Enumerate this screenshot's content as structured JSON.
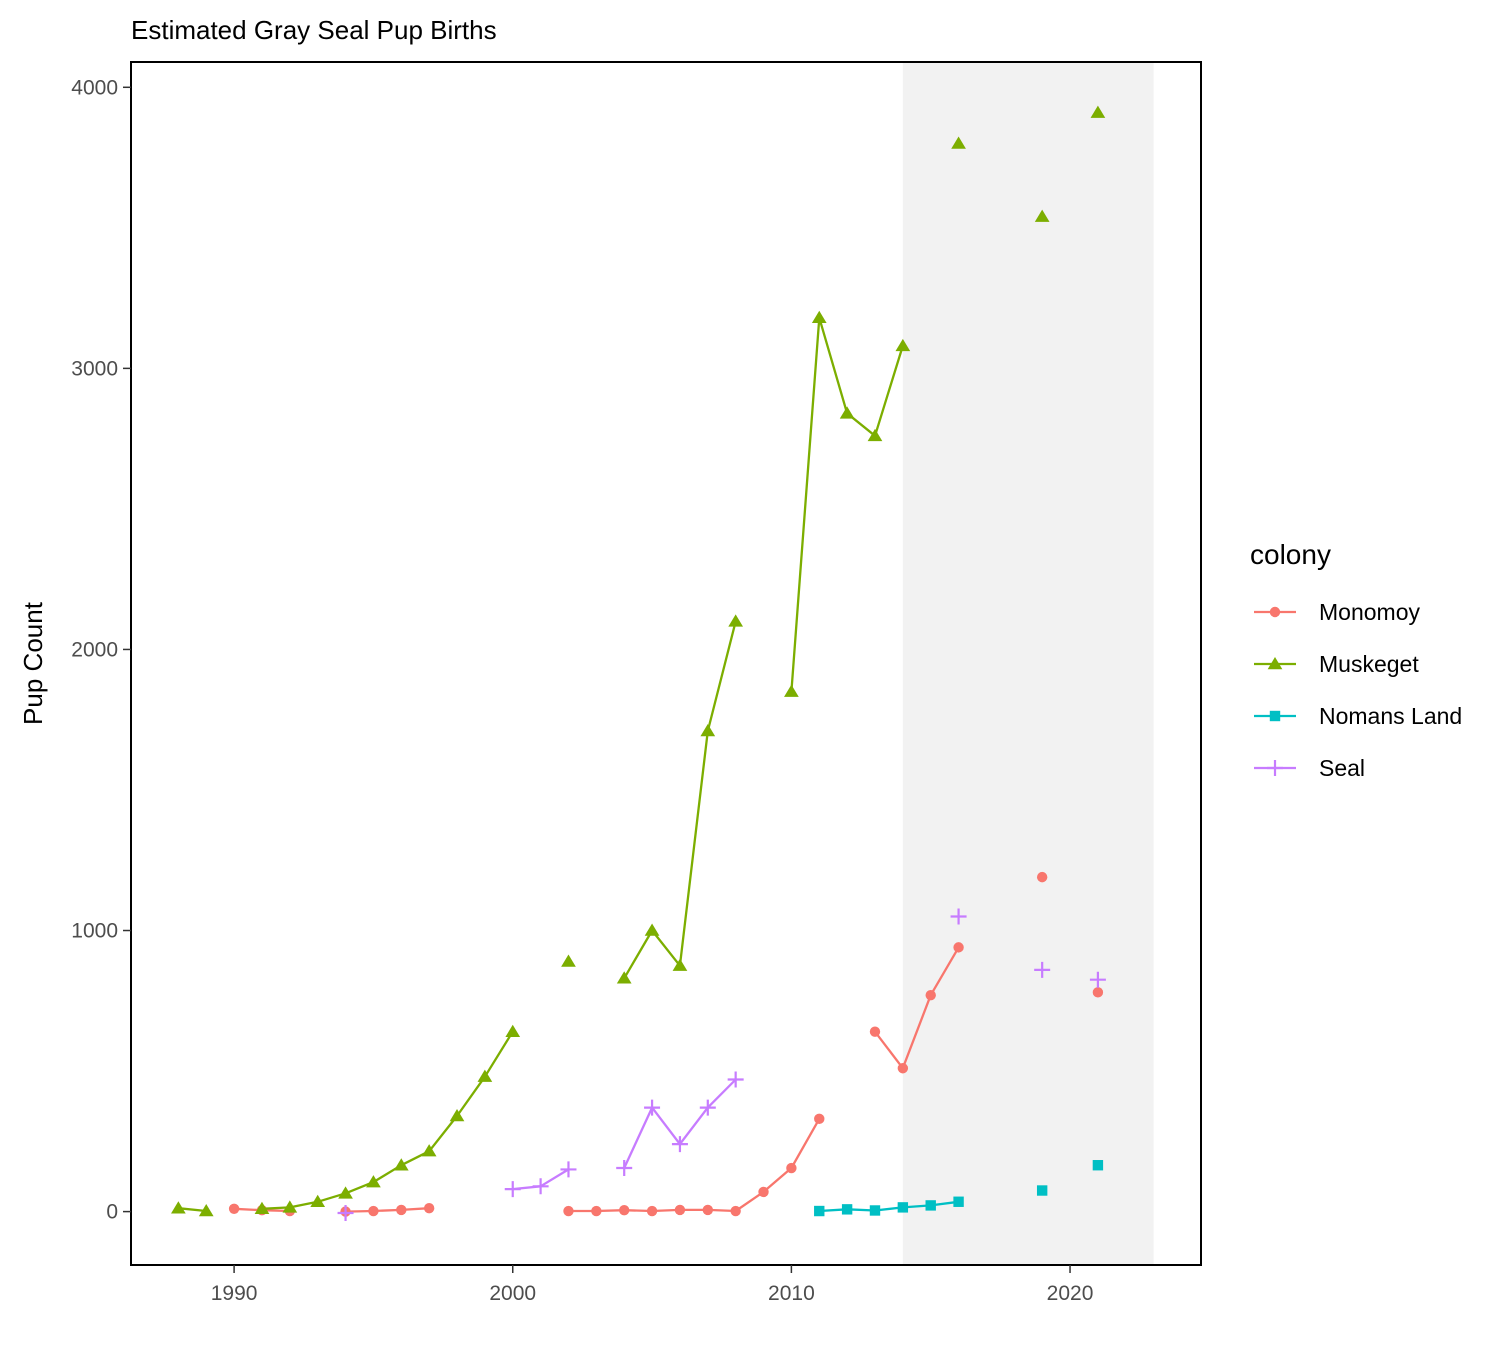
{
  "chart_data": {
    "type": "line",
    "title": "Estimated Gray Seal Pup Births",
    "xlabel": "",
    "ylabel": "Pup Count",
    "xlim": [
      1986.3,
      2024.7
    ],
    "ylim": [
      -190,
      4090
    ],
    "x_ticks": [
      1990,
      2000,
      2010,
      2020
    ],
    "y_ticks": [
      0,
      1000,
      2000,
      3000,
      4000
    ],
    "grid": false,
    "shaded_region": {
      "x_start": 2014,
      "x_end": 2023,
      "color": "#f2f2f2"
    },
    "legend": {
      "title": "colony",
      "position": "right"
    },
    "series": [
      {
        "name": "Monomoy",
        "color": "#F8766D",
        "shape": "circle",
        "points": [
          [
            1990,
            10
          ],
          [
            1991,
            5
          ],
          [
            1992,
            2
          ],
          [
            1994,
            0
          ],
          [
            1995,
            2
          ],
          [
            1996,
            6
          ],
          [
            1997,
            12
          ],
          [
            2002,
            2
          ],
          [
            2003,
            2
          ],
          [
            2004,
            5
          ],
          [
            2005,
            2
          ],
          [
            2006,
            6
          ],
          [
            2007,
            6
          ],
          [
            2008,
            2
          ],
          [
            2009,
            70
          ],
          [
            2010,
            155
          ],
          [
            2011,
            330
          ],
          [
            2013,
            640
          ],
          [
            2014,
            510
          ],
          [
            2015,
            770
          ],
          [
            2016,
            940
          ],
          [
            2019,
            1190
          ],
          [
            2021,
            780
          ]
        ]
      },
      {
        "name": "Muskeget",
        "color": "#7CAE00",
        "shape": "triangle",
        "points": [
          [
            1988,
            12
          ],
          [
            1989,
            2
          ],
          [
            1991,
            10
          ],
          [
            1992,
            15
          ],
          [
            1993,
            35
          ],
          [
            1994,
            65
          ],
          [
            1995,
            105
          ],
          [
            1996,
            165
          ],
          [
            1997,
            215
          ],
          [
            1998,
            340
          ],
          [
            1999,
            480
          ],
          [
            2000,
            640
          ],
          [
            2002,
            890
          ],
          [
            2004,
            830
          ],
          [
            2005,
            1000
          ],
          [
            2006,
            875
          ],
          [
            2007,
            1710
          ],
          [
            2008,
            2100
          ],
          [
            2010,
            1850
          ],
          [
            2011,
            3180
          ],
          [
            2012,
            2840
          ],
          [
            2013,
            2760
          ],
          [
            2014,
            3080
          ],
          [
            2016,
            3800
          ],
          [
            2019,
            3540
          ],
          [
            2021,
            3910
          ]
        ]
      },
      {
        "name": "Nomans Land",
        "color": "#00BFC4",
        "shape": "square",
        "points": [
          [
            2011,
            2
          ],
          [
            2012,
            8
          ],
          [
            2013,
            4
          ],
          [
            2014,
            15
          ],
          [
            2015,
            22
          ],
          [
            2016,
            35
          ],
          [
            2019,
            75
          ],
          [
            2021,
            165
          ]
        ]
      },
      {
        "name": "Seal",
        "color": "#C77CFF",
        "shape": "plus",
        "points": [
          [
            1994,
            -5
          ],
          [
            2000,
            80
          ],
          [
            2001,
            90
          ],
          [
            2002,
            150
          ],
          [
            2004,
            155
          ],
          [
            2005,
            370
          ],
          [
            2006,
            240
          ],
          [
            2007,
            370
          ],
          [
            2008,
            470
          ],
          [
            2016,
            1050
          ],
          [
            2019,
            860
          ],
          [
            2021,
            825
          ]
        ]
      }
    ]
  }
}
